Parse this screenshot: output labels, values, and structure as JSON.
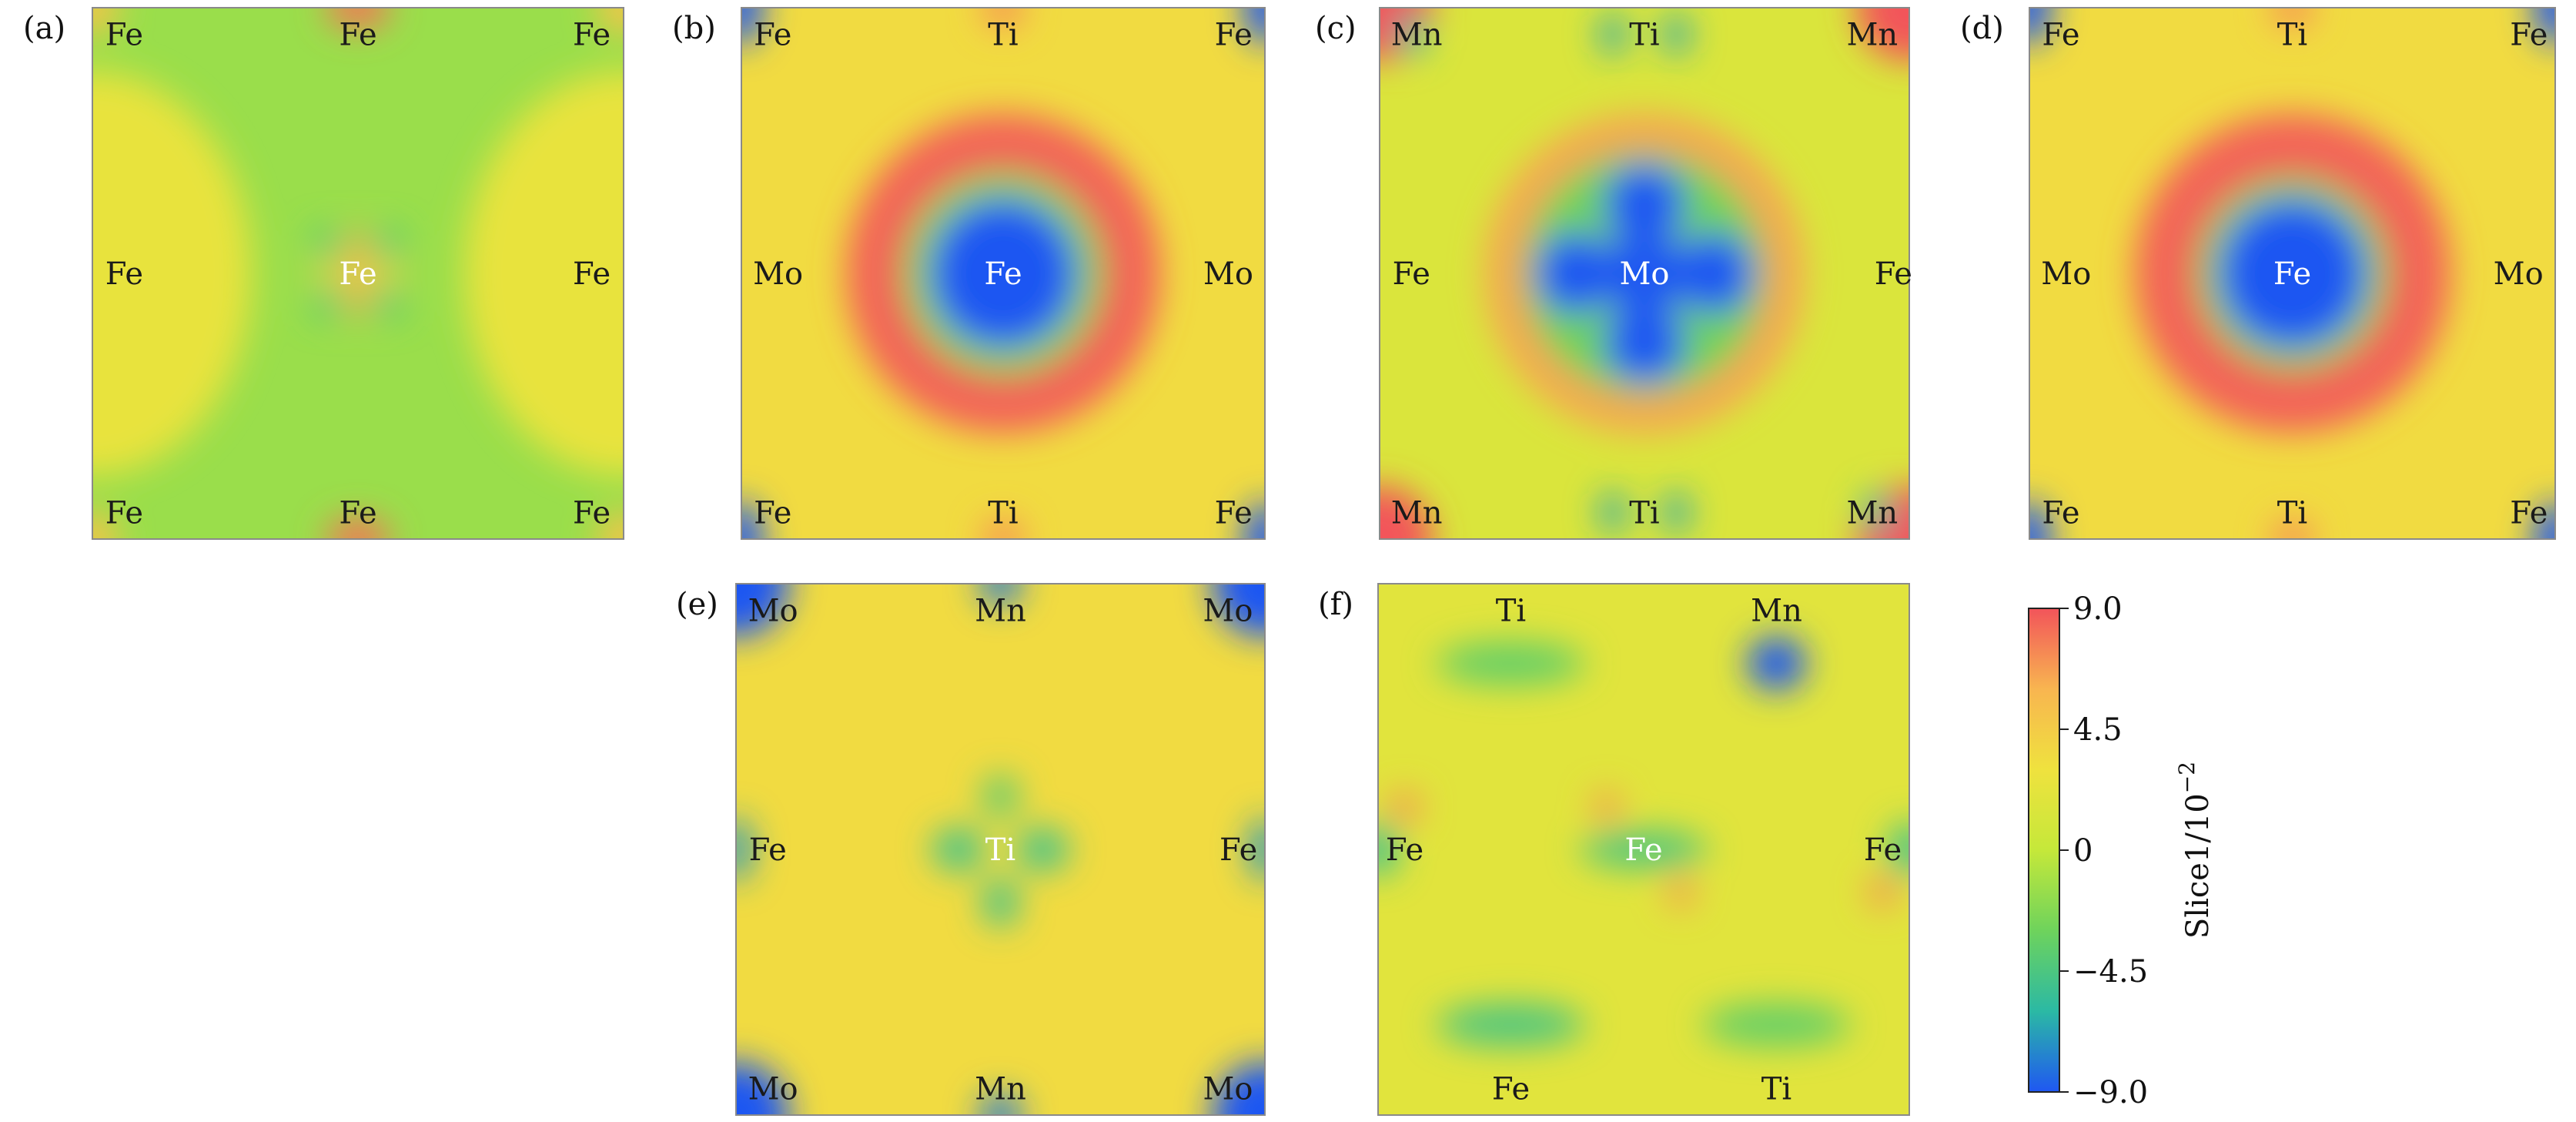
{
  "chart_data": [
    {
      "type": "heatmap",
      "panel": "(a)",
      "atom_labels": [
        {
          "text": "Fe",
          "x": 0.06,
          "y": 0.05
        },
        {
          "text": "Fe",
          "x": 0.5,
          "y": 0.05
        },
        {
          "text": "Fe",
          "x": 0.94,
          "y": 0.05
        },
        {
          "text": "Fe",
          "x": 0.06,
          "y": 0.5
        },
        {
          "text": "Fe",
          "x": 0.5,
          "y": 0.5
        },
        {
          "text": "Fe",
          "x": 0.94,
          "y": 0.5
        },
        {
          "text": "Fe",
          "x": 0.06,
          "y": 0.95
        },
        {
          "text": "Fe",
          "x": 0.5,
          "y": 0.95
        },
        {
          "text": "Fe",
          "x": 0.94,
          "y": 0.95
        }
      ],
      "base_value": -1.5,
      "features": [
        {
          "x": 0.0,
          "y": 0.5,
          "rx": 0.1,
          "ry": 0.2,
          "value": -9.0
        },
        {
          "x": 1.0,
          "y": 0.5,
          "rx": 0.1,
          "ry": 0.2,
          "value": -9.0
        },
        {
          "x": 0.0,
          "y": 0.5,
          "rx": 0.3,
          "ry": 0.38,
          "value": 2.5
        },
        {
          "x": 1.0,
          "y": 0.5,
          "rx": 0.3,
          "ry": 0.38,
          "value": 2.5
        },
        {
          "x": 0.5,
          "y": 0.5,
          "rx": 0.02,
          "ry": 0.09,
          "value": 6.5
        },
        {
          "x": 0.5,
          "y": 0.5,
          "rx": 0.09,
          "ry": 0.02,
          "value": 4.5
        },
        {
          "x": 0.44,
          "y": 0.44,
          "rx": 0.025,
          "ry": 0.025,
          "value": -4.5
        },
        {
          "x": 0.56,
          "y": 0.44,
          "rx": 0.025,
          "ry": 0.025,
          "value": -4.5
        },
        {
          "x": 0.44,
          "y": 0.56,
          "rx": 0.025,
          "ry": 0.025,
          "value": -4.5
        },
        {
          "x": 0.56,
          "y": 0.56,
          "rx": 0.025,
          "ry": 0.025,
          "value": -4.5
        },
        {
          "x": 0.5,
          "y": 0.0,
          "rx": 0.06,
          "ry": 0.04,
          "value": 8.0
        },
        {
          "x": 0.5,
          "y": 1.0,
          "rx": 0.06,
          "ry": 0.04,
          "value": 8.0
        },
        {
          "x": 0.0,
          "y": 0.0,
          "rx": 0.05,
          "ry": 0.05,
          "value": 5.0
        },
        {
          "x": 1.0,
          "y": 0.0,
          "rx": 0.05,
          "ry": 0.05,
          "value": 5.0
        },
        {
          "x": 0.0,
          "y": 1.0,
          "rx": 0.05,
          "ry": 0.05,
          "value": 5.0
        },
        {
          "x": 1.0,
          "y": 1.0,
          "rx": 0.05,
          "ry": 0.05,
          "value": 5.0
        }
      ]
    },
    {
      "type": "heatmap",
      "panel": "(b)",
      "atom_labels": [
        {
          "text": "Fe",
          "x": 0.06,
          "y": 0.05
        },
        {
          "text": "Ti",
          "x": 0.5,
          "y": 0.05
        },
        {
          "text": "Fe",
          "x": 0.94,
          "y": 0.05
        },
        {
          "text": "Mo",
          "x": 0.07,
          "y": 0.5
        },
        {
          "text": "Fe",
          "x": 0.5,
          "y": 0.5
        },
        {
          "text": "Mo",
          "x": 0.93,
          "y": 0.5
        },
        {
          "text": "Fe",
          "x": 0.06,
          "y": 0.95
        },
        {
          "text": "Ti",
          "x": 0.5,
          "y": 0.95
        },
        {
          "text": "Fe",
          "x": 0.94,
          "y": 0.95
        }
      ],
      "base_value": 3.5,
      "features": [
        {
          "x": 0.5,
          "y": 0.5,
          "rx": 0.3,
          "ry": 0.3,
          "value": 8.5
        },
        {
          "x": 0.5,
          "y": 0.5,
          "rx": 0.19,
          "ry": 0.19,
          "value": -2.5
        },
        {
          "x": 0.5,
          "y": 0.5,
          "rx": 0.14,
          "ry": 0.14,
          "value": -9.0
        },
        {
          "x": 0.0,
          "y": 0.0,
          "rx": 0.04,
          "ry": 0.07,
          "value": -9.0
        },
        {
          "x": 1.0,
          "y": 0.0,
          "rx": 0.04,
          "ry": 0.07,
          "value": -9.0
        },
        {
          "x": 0.0,
          "y": 1.0,
          "rx": 0.04,
          "ry": 0.07,
          "value": -9.0
        },
        {
          "x": 1.0,
          "y": 1.0,
          "rx": 0.04,
          "ry": 0.07,
          "value": -9.0
        },
        {
          "x": 0.5,
          "y": 0.0,
          "rx": 0.04,
          "ry": 0.04,
          "value": 7.0
        },
        {
          "x": 0.5,
          "y": 1.0,
          "rx": 0.04,
          "ry": 0.04,
          "value": 7.0
        }
      ]
    },
    {
      "type": "heatmap",
      "panel": "(c)",
      "atom_labels": [
        {
          "text": "Mn",
          "x": 0.07,
          "y": 0.05
        },
        {
          "text": "Ti",
          "x": 0.5,
          "y": 0.05
        },
        {
          "text": "Mn",
          "x": 0.93,
          "y": 0.05
        },
        {
          "text": "Fe",
          "x": 0.06,
          "y": 0.5
        },
        {
          "text": "Mo",
          "x": 0.5,
          "y": 0.5
        },
        {
          "text": "Fe",
          "x": 0.97,
          "y": 0.5
        },
        {
          "text": "Mn",
          "x": 0.07,
          "y": 0.95
        },
        {
          "text": "Ti",
          "x": 0.5,
          "y": 0.95
        },
        {
          "text": "Mn",
          "x": 0.93,
          "y": 0.95
        }
      ],
      "base_value": 1.5,
      "features": [
        {
          "x": 0.5,
          "y": 0.5,
          "rx": 0.3,
          "ry": 0.3,
          "value": 6.5
        },
        {
          "x": 0.5,
          "y": 0.5,
          "rx": 0.23,
          "ry": 0.23,
          "value": -3.0
        },
        {
          "x": 0.5,
          "y": 0.37,
          "rx": 0.075,
          "ry": 0.075,
          "value": -9.0
        },
        {
          "x": 0.5,
          "y": 0.63,
          "rx": 0.075,
          "ry": 0.075,
          "value": -9.0
        },
        {
          "x": 0.37,
          "y": 0.5,
          "rx": 0.075,
          "ry": 0.075,
          "value": -9.0
        },
        {
          "x": 0.63,
          "y": 0.5,
          "rx": 0.075,
          "ry": 0.075,
          "value": -9.0
        },
        {
          "x": 0.5,
          "y": 0.5,
          "rx": 0.08,
          "ry": 0.08,
          "value": -9.0
        },
        {
          "x": 0.0,
          "y": 0.0,
          "rx": 0.1,
          "ry": 0.1,
          "value": 9.0
        },
        {
          "x": 1.0,
          "y": 0.0,
          "rx": 0.1,
          "ry": 0.1,
          "value": 9.0
        },
        {
          "x": 0.0,
          "y": 1.0,
          "rx": 0.1,
          "ry": 0.1,
          "value": 9.0
        },
        {
          "x": 1.0,
          "y": 1.0,
          "rx": 0.1,
          "ry": 0.1,
          "value": 9.0
        },
        {
          "x": 0.44,
          "y": 0.05,
          "rx": 0.025,
          "ry": 0.04,
          "value": -6.5
        },
        {
          "x": 0.56,
          "y": 0.05,
          "rx": 0.025,
          "ry": 0.04,
          "value": -6.5
        },
        {
          "x": 0.44,
          "y": 0.95,
          "rx": 0.025,
          "ry": 0.04,
          "value": -6.5
        },
        {
          "x": 0.56,
          "y": 0.95,
          "rx": 0.025,
          "ry": 0.04,
          "value": -6.5
        },
        {
          "x": 0.06,
          "y": 0.05,
          "rx": 0.03,
          "ry": 0.04,
          "value": -6.0
        },
        {
          "x": 0.94,
          "y": 0.95,
          "rx": 0.03,
          "ry": 0.04,
          "value": -6.0
        }
      ]
    },
    {
      "type": "heatmap",
      "panel": "(d)",
      "atom_labels": [
        {
          "text": "Fe",
          "x": 0.06,
          "y": 0.05
        },
        {
          "text": "Ti",
          "x": 0.5,
          "y": 0.05
        },
        {
          "text": "Fe",
          "x": 0.95,
          "y": 0.05
        },
        {
          "text": "Mo",
          "x": 0.07,
          "y": 0.5
        },
        {
          "text": "Fe",
          "x": 0.5,
          "y": 0.5
        },
        {
          "text": "Mo",
          "x": 0.93,
          "y": 0.5
        },
        {
          "text": "Fe",
          "x": 0.06,
          "y": 0.95
        },
        {
          "text": "Ti",
          "x": 0.5,
          "y": 0.95
        },
        {
          "text": "Fe",
          "x": 0.95,
          "y": 0.95
        }
      ],
      "base_value": 3.5,
      "features": [
        {
          "x": 0.5,
          "y": 0.5,
          "rx": 0.3,
          "ry": 0.3,
          "value": 8.5
        },
        {
          "x": 0.5,
          "y": 0.5,
          "rx": 0.18,
          "ry": 0.18,
          "value": -2.5
        },
        {
          "x": 0.5,
          "y": 0.5,
          "rx": 0.14,
          "ry": 0.14,
          "value": -9.0
        },
        {
          "x": 0.0,
          "y": 0.0,
          "rx": 0.04,
          "ry": 0.07,
          "value": -9.0
        },
        {
          "x": 1.0,
          "y": 0.0,
          "rx": 0.04,
          "ry": 0.07,
          "value": -9.0
        },
        {
          "x": 0.0,
          "y": 1.0,
          "rx": 0.04,
          "ry": 0.07,
          "value": -9.0
        },
        {
          "x": 1.0,
          "y": 1.0,
          "rx": 0.04,
          "ry": 0.07,
          "value": -9.0
        },
        {
          "x": 0.5,
          "y": 0.0,
          "rx": 0.04,
          "ry": 0.04,
          "value": 7.0
        },
        {
          "x": 0.5,
          "y": 1.0,
          "rx": 0.04,
          "ry": 0.04,
          "value": 7.0
        }
      ]
    },
    {
      "type": "heatmap",
      "panel": "(e)",
      "atom_labels": [
        {
          "text": "Mo",
          "x": 0.07,
          "y": 0.05
        },
        {
          "text": "Mn",
          "x": 0.5,
          "y": 0.05
        },
        {
          "text": "Mo",
          "x": 0.93,
          "y": 0.05
        },
        {
          "text": "Fe",
          "x": 0.06,
          "y": 0.5
        },
        {
          "text": "Ti",
          "x": 0.5,
          "y": 0.5
        },
        {
          "text": "Fe",
          "x": 0.95,
          "y": 0.5
        },
        {
          "text": "Mo",
          "x": 0.07,
          "y": 0.95
        },
        {
          "text": "Mn",
          "x": 0.5,
          "y": 0.95
        },
        {
          "text": "Mo",
          "x": 0.93,
          "y": 0.95
        }
      ],
      "base_value": 3.5,
      "features": [
        {
          "x": 0.0,
          "y": 0.0,
          "rx": 0.1,
          "ry": 0.1,
          "value": -9.0
        },
        {
          "x": 1.0,
          "y": 0.0,
          "rx": 0.1,
          "ry": 0.1,
          "value": -9.0
        },
        {
          "x": 0.0,
          "y": 1.0,
          "rx": 0.1,
          "ry": 0.1,
          "value": -9.0
        },
        {
          "x": 1.0,
          "y": 1.0,
          "rx": 0.1,
          "ry": 0.1,
          "value": -9.0
        },
        {
          "x": 0.42,
          "y": 0.5,
          "rx": 0.05,
          "ry": 0.04,
          "value": -5.0
        },
        {
          "x": 0.58,
          "y": 0.5,
          "rx": 0.05,
          "ry": 0.04,
          "value": -5.0
        },
        {
          "x": 0.5,
          "y": 0.4,
          "rx": 0.035,
          "ry": 0.04,
          "value": -4.0
        },
        {
          "x": 0.5,
          "y": 0.6,
          "rx": 0.035,
          "ry": 0.045,
          "value": -5.0
        },
        {
          "x": 0.0,
          "y": 0.5,
          "rx": 0.03,
          "ry": 0.06,
          "value": -7.0
        },
        {
          "x": 1.0,
          "y": 0.5,
          "rx": 0.03,
          "ry": 0.06,
          "value": -7.0
        },
        {
          "x": 0.5,
          "y": 0.0,
          "rx": 0.04,
          "ry": 0.04,
          "value": -8.0
        },
        {
          "x": 0.5,
          "y": 1.0,
          "rx": 0.04,
          "ry": 0.04,
          "value": -8.0
        }
      ]
    },
    {
      "type": "heatmap",
      "panel": "(f)",
      "atom_labels": [
        {
          "text": "Ti",
          "x": 0.25,
          "y": 0.05
        },
        {
          "text": "Mn",
          "x": 0.75,
          "y": 0.05
        },
        {
          "text": "Fe",
          "x": 0.05,
          "y": 0.5
        },
        {
          "text": "Fe",
          "x": 0.5,
          "y": 0.5
        },
        {
          "text": "Fe",
          "x": 0.95,
          "y": 0.5
        },
        {
          "text": "Fe",
          "x": 0.25,
          "y": 0.95
        },
        {
          "text": "Ti",
          "x": 0.75,
          "y": 0.95
        }
      ],
      "base_value": 2.0,
      "features": [
        {
          "x": 0.75,
          "y": 0.15,
          "rx": 0.055,
          "ry": 0.05,
          "value": -9.0
        },
        {
          "x": 0.25,
          "y": 0.15,
          "rx": 0.14,
          "ry": 0.04,
          "value": -3.5
        },
        {
          "x": 0.25,
          "y": 0.83,
          "rx": 0.14,
          "ry": 0.04,
          "value": -4.5
        },
        {
          "x": 0.75,
          "y": 0.83,
          "rx": 0.14,
          "ry": 0.04,
          "value": -3.5
        },
        {
          "x": 0.5,
          "y": 0.5,
          "rx": 0.12,
          "ry": 0.035,
          "value": -4.5
        },
        {
          "x": 0.0,
          "y": 0.5,
          "rx": 0.04,
          "ry": 0.05,
          "value": -5.0
        },
        {
          "x": 1.0,
          "y": 0.5,
          "rx": 0.04,
          "ry": 0.05,
          "value": -5.0
        },
        {
          "x": 0.05,
          "y": 0.42,
          "rx": 0.03,
          "ry": 0.03,
          "value": 7.0
        },
        {
          "x": 0.43,
          "y": 0.42,
          "rx": 0.025,
          "ry": 0.03,
          "value": 7.0
        },
        {
          "x": 0.57,
          "y": 0.58,
          "rx": 0.025,
          "ry": 0.03,
          "value": 7.0
        },
        {
          "x": 0.95,
          "y": 0.58,
          "rx": 0.03,
          "ry": 0.03,
          "value": 7.0
        }
      ]
    }
  ],
  "panels": [
    {
      "label": "(a)"
    },
    {
      "label": "(b)"
    },
    {
      "label": "(c)"
    },
    {
      "label": "(d)"
    },
    {
      "label": "(e)"
    },
    {
      "label": "(f)"
    }
  ],
  "colorbar": {
    "title": "Slice1/10",
    "title_exponent": "−2",
    "min": -9.0,
    "max": 9.0,
    "ticks": [
      {
        "value": 9.0,
        "label": "9.0"
      },
      {
        "value": 4.5,
        "label": "4.5"
      },
      {
        "value": 0,
        "label": "0"
      },
      {
        "value": -4.5,
        "label": "−4.5"
      },
      {
        "value": -9.0,
        "label": "−9.0"
      }
    ],
    "colors": [
      "#1f57f2",
      "#2bb9a4",
      "#6ed35c",
      "#c5e83a",
      "#efe23e",
      "#f8b550",
      "#f2545a"
    ]
  }
}
